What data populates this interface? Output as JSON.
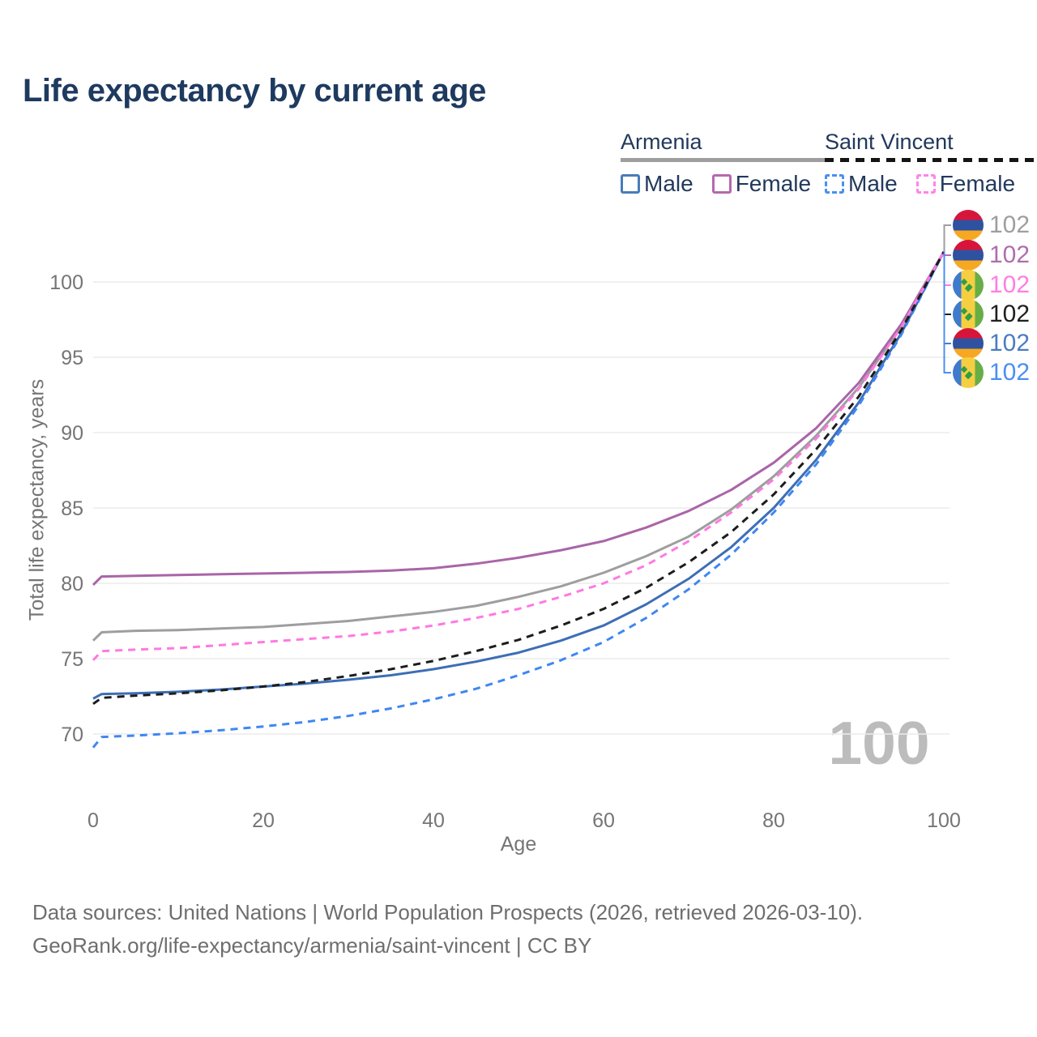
{
  "title": "Life expectancy by current age",
  "colors": {
    "title_text": "#1E3A5F",
    "legend_text": "#22395C",
    "tick_text": "#757575",
    "gridline": "#EBEBEB",
    "watermark": "#BCBCBC",
    "footer_text": "#6E6E6E"
  },
  "legend": {
    "groups": [
      {
        "title": "Armenia",
        "underline_style": "solid",
        "underline_color": "#9E9E9E",
        "items": [
          {
            "label": "Male",
            "box_color": "#4A7CB8",
            "box_style": "solid"
          },
          {
            "label": "Female",
            "box_color": "#B569AD",
            "box_style": "solid"
          }
        ]
      },
      {
        "title": "Saint Vincent",
        "underline_style": "dashed",
        "underline_color": "#141414",
        "items": [
          {
            "label": "Male",
            "box_color": "#4A90F0",
            "box_style": "dashed"
          },
          {
            "label": "Female",
            "box_color": "#FF85E8",
            "box_style": "dashed"
          }
        ]
      }
    ]
  },
  "axes": {
    "x": {
      "title": "Age"
    },
    "y": {
      "title": "Total life expectancy, years"
    }
  },
  "chart_data": {
    "type": "line",
    "title": "Life expectancy by current age",
    "xlabel": "Age",
    "ylabel": "Total life expectancy, years",
    "xlim": [
      0,
      100
    ],
    "ylim": [
      68,
      103
    ],
    "xticks": [
      0,
      20,
      40,
      60,
      80,
      100
    ],
    "yticks": [
      100,
      95,
      90,
      85,
      80,
      75,
      70
    ],
    "grid": "horizontal",
    "legend_position": "top-right",
    "age_counter_watermark": "100",
    "x": [
      0,
      1,
      5,
      10,
      15,
      20,
      25,
      30,
      35,
      40,
      45,
      50,
      55,
      60,
      65,
      70,
      75,
      80,
      85,
      90,
      95,
      100
    ],
    "series": [
      {
        "name": "Armenia Total",
        "country": "Armenia",
        "sex": "both",
        "color": "#9E9E9E",
        "dashed": false,
        "values": [
          76.2,
          76.75,
          76.85,
          76.9,
          77.0,
          77.1,
          77.3,
          77.5,
          77.8,
          78.1,
          78.5,
          79.1,
          79.8,
          80.7,
          81.8,
          83.1,
          84.9,
          87.1,
          89.8,
          93.0,
          97.0,
          102
        ]
      },
      {
        "name": "Armenia Female",
        "country": "Armenia",
        "sex": "female",
        "color": "#A965A8",
        "dashed": false,
        "values": [
          79.9,
          80.45,
          80.5,
          80.55,
          80.6,
          80.65,
          80.7,
          80.75,
          80.85,
          81.0,
          81.3,
          81.7,
          82.2,
          82.8,
          83.7,
          84.8,
          86.2,
          88.0,
          90.3,
          93.3,
          97.2,
          102
        ]
      },
      {
        "name": "Armenia Male",
        "country": "Armenia",
        "sex": "male",
        "color": "#3D6EB5",
        "dashed": false,
        "values": [
          72.35,
          72.65,
          72.7,
          72.8,
          72.95,
          73.15,
          73.35,
          73.6,
          73.9,
          74.3,
          74.8,
          75.4,
          76.2,
          77.2,
          78.6,
          80.3,
          82.4,
          85.0,
          88.2,
          92.0,
          96.6,
          102
        ]
      },
      {
        "name": "Saint Vincent Male",
        "country": "Saint Vincent",
        "sex": "male",
        "color": "#3F87F2",
        "dashed": true,
        "values": [
          69.1,
          69.8,
          69.9,
          70.05,
          70.25,
          70.5,
          70.8,
          71.2,
          71.7,
          72.3,
          73.0,
          73.9,
          74.9,
          76.1,
          77.7,
          79.6,
          81.9,
          84.7,
          87.9,
          91.8,
          96.5,
          102
        ]
      },
      {
        "name": "Saint Vincent Female",
        "country": "Saint Vincent",
        "sex": "female",
        "color": "#FF79E1",
        "dashed": true,
        "values": [
          74.9,
          75.5,
          75.6,
          75.7,
          75.9,
          76.1,
          76.3,
          76.5,
          76.8,
          77.2,
          77.7,
          78.3,
          79.1,
          80.0,
          81.2,
          82.8,
          84.7,
          86.9,
          89.6,
          92.9,
          97.0,
          102
        ]
      },
      {
        "name": "Saint Vincent Total",
        "country": "Saint Vincent",
        "sex": "both",
        "color": "#1C1C1C",
        "dashed": true,
        "values": [
          72.0,
          72.4,
          72.55,
          72.7,
          72.9,
          73.15,
          73.45,
          73.85,
          74.3,
          74.85,
          75.5,
          76.25,
          77.2,
          78.3,
          79.7,
          81.4,
          83.4,
          85.9,
          88.9,
          92.4,
          96.8,
          102
        ]
      }
    ]
  },
  "end_labels": [
    {
      "flag": "armenia",
      "value": "102",
      "color": "#9E9E9E"
    },
    {
      "flag": "armenia",
      "value": "102",
      "color": "#B06DAD"
    },
    {
      "flag": "saint-vincent",
      "value": "102",
      "color": "#FF7DE4"
    },
    {
      "flag": "saint-vincent",
      "value": "102",
      "color": "#1F1F1F"
    },
    {
      "flag": "armenia",
      "value": "102",
      "color": "#4A7CC4"
    },
    {
      "flag": "saint-vincent",
      "value": "102",
      "color": "#4A90F0"
    }
  ],
  "footer": {
    "line1": "Data sources: United Nations | World Population Prospects (2026, retrieved 2026-03-10).",
    "line2": "GeoRank.org/life-expectancy/armenia/saint-vincent | CC BY"
  }
}
